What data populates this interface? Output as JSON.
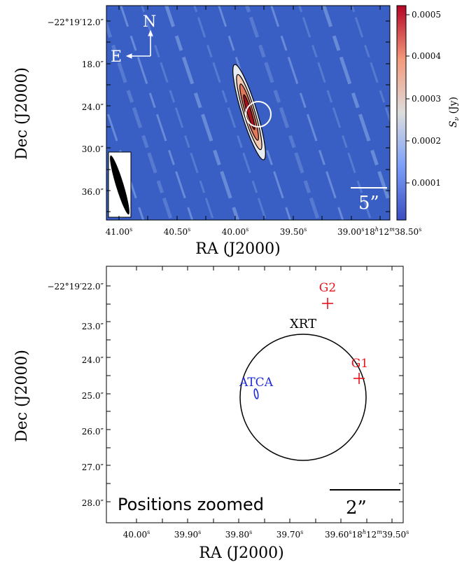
{
  "top_panel": {
    "ra_ticks": [
      "41.00",
      "40.50",
      "40.00",
      "39.50",
      "39.00",
      "18",
      "12",
      "38.50"
    ],
    "dec_ticks": [
      "−22°19′12.0″",
      "18.0″",
      "24.0″",
      "30.0″",
      "36.0″"
    ],
    "xlabel": "RA (J2000)",
    "ylabel": "Dec (J2000)",
    "compass_n": "N",
    "compass_e": "E",
    "scalebar_label": "5”",
    "colorbar_ticks": [
      "0.0005",
      "0.0004",
      "0.0003",
      "0.0002",
      "0.0001"
    ],
    "colorbar_label": "S_ν (Jy)",
    "colors": {
      "background": "#3a5fc4",
      "streak": "#8eaeea",
      "contour": "#000000",
      "circle": "#ffffff"
    }
  },
  "bottom_panel": {
    "ra_ticks": [
      "40.00",
      "39.90",
      "39.80",
      "39.70",
      "39.60",
      "18",
      "12",
      "39.50"
    ],
    "dec_ticks": [
      "−22°19′22.0″",
      "23.0″",
      "24.0″",
      "25.0″",
      "26.0″",
      "27.0″",
      "28.0″"
    ],
    "xlabel": "RA (J2000)",
    "ylabel": "Dec (J2000)",
    "labels": {
      "xrt": "XRT",
      "g1": "G1",
      "g2": "G2",
      "atca": "ATCA"
    },
    "panel_title": "Positions zoomed",
    "scalebar_label": "2”",
    "colors": {
      "xrt": "#000000",
      "galaxy": "#e8141c",
      "atca": "#1f2bd6"
    }
  }
}
